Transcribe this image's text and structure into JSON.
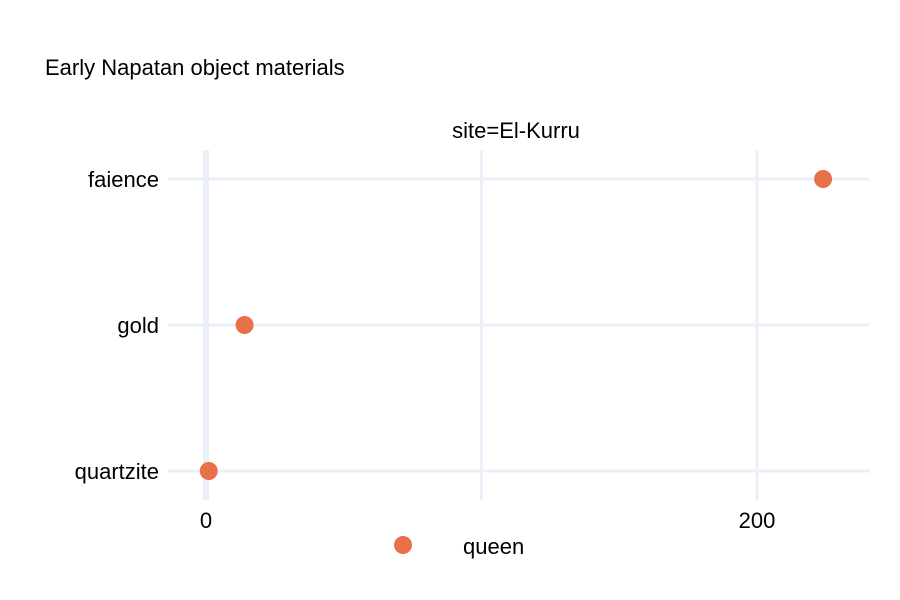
{
  "chart_data": {
    "type": "scatter",
    "title": "Early Napatan object materials",
    "facet_label": "site=El-Kurru",
    "xlabel": "",
    "ylabel": "",
    "categories": [
      "faience",
      "gold",
      "quartzite"
    ],
    "x_ticks": [
      0,
      200
    ],
    "x_gridlines": [
      0,
      100,
      200
    ],
    "xlim": [
      -18,
      241
    ],
    "grid": true,
    "legend_position": "bottom",
    "series": [
      {
        "name": "queen",
        "color": "#E8704A",
        "points": [
          {
            "category": "faience",
            "x": 224
          },
          {
            "category": "gold",
            "x": 14
          },
          {
            "category": "quartzite",
            "x": 1
          }
        ]
      }
    ]
  }
}
